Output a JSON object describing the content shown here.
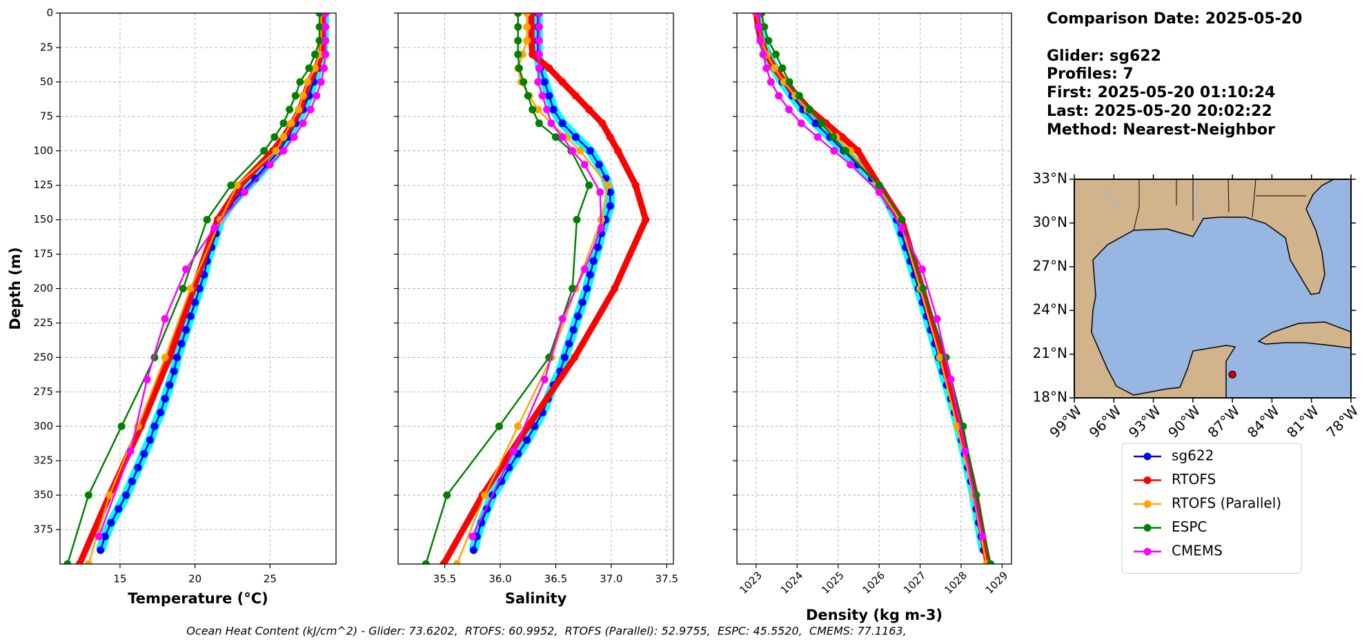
{
  "chart_data": [
    {
      "type": "profile",
      "xlabel": "Temperature (°C)",
      "ylabel": "Depth (m)",
      "xlim": [
        11.0,
        29.4
      ],
      "xticks": [
        15,
        20,
        25
      ],
      "ylim": [
        0,
        400
      ],
      "y_inverted": true,
      "yticks": [
        0,
        25,
        50,
        75,
        100,
        125,
        150,
        175,
        200,
        225,
        250,
        275,
        300,
        325,
        350,
        375
      ],
      "grid": true,
      "legend": true,
      "series": [
        {
          "name": "sg622",
          "color": "#0000ff",
          "band_color": "#00ffff",
          "line_width": 2.5,
          "marker_size": 5.5,
          "y": [
            0,
            10,
            20,
            30,
            40,
            50,
            60,
            70,
            80,
            90,
            100,
            110,
            120,
            130,
            140,
            150,
            160,
            170,
            180,
            190,
            200,
            210,
            220,
            230,
            240,
            250,
            260,
            270,
            280,
            290,
            300,
            310,
            320,
            330,
            340,
            350,
            360,
            370,
            380,
            390
          ],
          "x": [
            28.6,
            28.6,
            28.6,
            28.5,
            28.2,
            27.9,
            27.6,
            27.2,
            26.7,
            26.2,
            25.6,
            24.8,
            24.0,
            23.1,
            22.3,
            21.7,
            21.4,
            21.1,
            20.8,
            20.6,
            20.3,
            20.0,
            19.7,
            19.4,
            19.1,
            18.8,
            18.6,
            18.3,
            18.0,
            17.7,
            17.3,
            17.0,
            16.6,
            16.2,
            15.8,
            15.4,
            14.9,
            14.4,
            14.0,
            13.7
          ]
        },
        {
          "name": "RTOFS",
          "color": "#ff0000",
          "line_width": 9,
          "marker_size": 5.5,
          "y": [
            0,
            10,
            20,
            30,
            40,
            50,
            60,
            70,
            80,
            90,
            100,
            125,
            150,
            200,
            250,
            300,
            350,
            400
          ],
          "x": [
            28.5,
            28.5,
            28.5,
            28.4,
            28.1,
            27.6,
            27.3,
            27.0,
            26.5,
            25.9,
            25.2,
            23.0,
            21.5,
            19.9,
            18.3,
            16.4,
            14.3,
            12.3
          ]
        },
        {
          "name": "RTOFS (Parallel)",
          "color": "#ffa500",
          "line_width": 2.5,
          "marker_size": 5.5,
          "y": [
            0,
            10,
            20,
            30,
            40,
            50,
            60,
            70,
            80,
            90,
            100,
            125,
            150,
            200,
            250,
            300,
            350,
            400
          ],
          "x": [
            28.4,
            28.4,
            28.4,
            28.3,
            28.0,
            27.5,
            27.2,
            26.9,
            26.4,
            25.9,
            25.4,
            22.8,
            21.7,
            19.7,
            18.0,
            16.2,
            14.3,
            12.9
          ]
        },
        {
          "name": "ESPC",
          "color": "#008000",
          "line_width": 2.5,
          "marker_size": 5.5,
          "y": [
            0,
            10,
            20,
            30,
            40,
            50,
            60,
            70,
            80,
            90,
            100,
            125,
            150,
            200,
            250,
            300,
            350,
            400
          ],
          "x": [
            28.3,
            28.3,
            28.3,
            28.0,
            27.6,
            27.0,
            26.7,
            26.3,
            25.9,
            25.3,
            24.6,
            22.4,
            20.8,
            19.2,
            17.3,
            15.1,
            12.9,
            11.5
          ]
        },
        {
          "name": "CMEMS",
          "color": "#ff00ff",
          "line_width": 2.5,
          "marker_size": 5.5,
          "y": [
            0,
            10,
            20,
            30,
            40,
            50,
            60,
            70,
            80,
            90,
            100,
            110,
            130,
            156,
            186,
            222,
            266,
            318,
            380
          ],
          "x": [
            28.7,
            28.7,
            28.7,
            28.7,
            28.6,
            28.4,
            28.1,
            27.7,
            27.2,
            26.6,
            25.9,
            25.0,
            23.3,
            21.3,
            19.4,
            18.0,
            16.8,
            15.7,
            13.6
          ]
        }
      ]
    },
    {
      "type": "profile",
      "xlabel": "Salinity",
      "xlim": [
        35.08,
        37.56
      ],
      "xticks": [
        35.5,
        {
          "value": 36,
          "label": "36.0"
        },
        36.5,
        {
          "value": 37,
          "label": "37.0"
        },
        37.5
      ],
      "sharey": true,
      "grid": true,
      "series": [
        {
          "color": "#0000ff",
          "band_color": "#00ffff",
          "line_width": 2.5,
          "marker_size": 5.5,
          "y": [
            0,
            10,
            20,
            30,
            40,
            50,
            60,
            70,
            80,
            90,
            100,
            110,
            120,
            130,
            140,
            150,
            160,
            170,
            180,
            190,
            200,
            210,
            220,
            230,
            240,
            250,
            260,
            270,
            280,
            290,
            300,
            310,
            320,
            330,
            340,
            350,
            360,
            370,
            380,
            390
          ],
          "x": [
            36.34,
            36.34,
            36.34,
            36.34,
            36.36,
            36.4,
            36.44,
            36.48,
            36.56,
            36.68,
            36.81,
            36.89,
            36.95,
            36.99,
            36.99,
            36.95,
            36.91,
            36.88,
            36.84,
            36.81,
            36.78,
            36.74,
            36.7,
            36.66,
            36.62,
            36.58,
            36.54,
            36.48,
            36.43,
            36.38,
            36.31,
            36.24,
            36.16,
            36.08,
            36.01,
            35.93,
            35.88,
            35.83,
            35.79,
            35.76
          ]
        },
        {
          "color": "#ff0000",
          "line_width": 9,
          "marker_size": 5.5,
          "y": [
            0,
            10,
            20,
            30,
            40,
            50,
            60,
            70,
            80,
            90,
            100,
            125,
            150,
            200,
            250,
            300,
            350,
            400
          ],
          "x": [
            36.28,
            36.28,
            36.28,
            36.29,
            36.44,
            36.56,
            36.68,
            36.8,
            36.92,
            36.99,
            37.06,
            37.22,
            37.31,
            37.03,
            36.67,
            36.25,
            35.84,
            35.49
          ]
        },
        {
          "color": "#ffa500",
          "line_width": 2.5,
          "marker_size": 5.5,
          "y": [
            0,
            10,
            20,
            30,
            40,
            50,
            60,
            70,
            80,
            90,
            100,
            125,
            150,
            200,
            250,
            300,
            350,
            400
          ],
          "x": [
            36.24,
            36.24,
            36.24,
            36.2,
            36.16,
            36.19,
            36.26,
            36.34,
            36.46,
            36.6,
            36.72,
            36.97,
            36.91,
            36.68,
            36.46,
            36.16,
            35.86,
            35.61
          ]
        },
        {
          "color": "#008000",
          "line_width": 2.5,
          "marker_size": 5.5,
          "y": [
            0,
            10,
            20,
            30,
            40,
            50,
            60,
            70,
            80,
            90,
            100,
            125,
            150,
            200,
            250,
            300,
            350,
            400
          ],
          "x": [
            36.16,
            36.16,
            36.16,
            36.16,
            36.17,
            36.21,
            36.25,
            36.29,
            36.35,
            36.5,
            36.64,
            36.8,
            36.69,
            36.65,
            36.44,
            35.99,
            35.52,
            35.33
          ]
        },
        {
          "color": "#ff00ff",
          "line_width": 2.5,
          "marker_size": 5.5,
          "y": [
            0,
            10,
            20,
            30,
            40,
            50,
            60,
            70,
            80,
            90,
            100,
            110,
            130,
            156,
            186,
            222,
            266,
            318,
            380
          ],
          "x": [
            36.35,
            36.35,
            36.35,
            36.35,
            36.35,
            36.34,
            36.38,
            36.42,
            36.46,
            36.56,
            36.65,
            36.76,
            36.9,
            36.91,
            36.76,
            36.56,
            36.4,
            36.12,
            35.75
          ]
        }
      ]
    },
    {
      "type": "profile",
      "xlabel": "Density (kg m-3)",
      "xlim": [
        1022.53,
        1029.23
      ],
      "xticks": [
        1023,
        1024,
        1025,
        1026,
        1027,
        1028,
        1029
      ],
      "xtick_rotation": 45,
      "sharey": true,
      "grid": true,
      "series": [
        {
          "color": "#0000ff",
          "band_color": "#00ffff",
          "line_width": 2.5,
          "marker_size": 5.5,
          "y": [
            0,
            10,
            20,
            30,
            40,
            50,
            60,
            70,
            80,
            90,
            100,
            110,
            120,
            130,
            140,
            150,
            160,
            170,
            180,
            190,
            200,
            210,
            220,
            230,
            240,
            250,
            260,
            270,
            280,
            290,
            300,
            310,
            320,
            330,
            340,
            350,
            360,
            370,
            380,
            390
          ],
          "x": [
            1023.04,
            1023.08,
            1023.15,
            1023.27,
            1023.44,
            1023.64,
            1023.88,
            1024.14,
            1024.45,
            1024.8,
            1025.14,
            1025.48,
            1025.82,
            1026.08,
            1026.27,
            1026.43,
            1026.54,
            1026.65,
            1026.76,
            1026.86,
            1026.96,
            1027.06,
            1027.16,
            1027.26,
            1027.36,
            1027.45,
            1027.55,
            1027.65,
            1027.75,
            1027.84,
            1027.93,
            1028.01,
            1028.09,
            1028.16,
            1028.24,
            1028.31,
            1028.37,
            1028.43,
            1028.49,
            1028.55
          ]
        },
        {
          "color": "#ff0000",
          "line_width": 9,
          "marker_size": 5.5,
          "y": [
            0,
            10,
            20,
            30,
            40,
            50,
            60,
            70,
            80,
            90,
            100,
            125,
            150,
            200,
            250,
            300,
            350,
            400
          ],
          "x": [
            1023.0,
            1023.05,
            1023.12,
            1023.25,
            1023.45,
            1023.7,
            1024.0,
            1024.3,
            1024.7,
            1025.1,
            1025.48,
            1026.0,
            1026.55,
            1027.05,
            1027.54,
            1027.97,
            1028.35,
            1028.65
          ]
        },
        {
          "color": "#ffa500",
          "line_width": 2.5,
          "marker_size": 5.5,
          "y": [
            0,
            10,
            20,
            30,
            40,
            50,
            60,
            70,
            80,
            90,
            100,
            125,
            150,
            200,
            250,
            300,
            350,
            400
          ],
          "x": [
            1023.02,
            1023.06,
            1023.13,
            1023.26,
            1023.45,
            1023.68,
            1023.95,
            1024.25,
            1024.6,
            1024.95,
            1025.3,
            1025.95,
            1026.5,
            1027.0,
            1027.48,
            1027.9,
            1028.3,
            1028.62
          ]
        },
        {
          "color": "#008000",
          "line_width": 2.5,
          "marker_size": 5.5,
          "y": [
            0,
            10,
            20,
            30,
            40,
            50,
            60,
            70,
            80,
            90,
            100,
            125,
            150,
            200,
            250,
            300,
            350,
            400
          ],
          "x": [
            1023.13,
            1023.2,
            1023.3,
            1023.48,
            1023.64,
            1023.81,
            1024.05,
            1024.3,
            1024.6,
            1024.88,
            1025.18,
            1026.0,
            1026.55,
            1027.07,
            1027.63,
            1028.05,
            1028.37,
            1028.72
          ]
        },
        {
          "color": "#ff00ff",
          "line_width": 2.5,
          "marker_size": 5.5,
          "y": [
            0,
            10,
            20,
            30,
            40,
            50,
            60,
            70,
            80,
            90,
            100,
            110,
            130,
            156,
            186,
            222,
            266,
            318,
            380
          ],
          "x": [
            1023.04,
            1023.06,
            1023.1,
            1023.17,
            1023.25,
            1023.36,
            1023.55,
            1023.8,
            1024.1,
            1024.5,
            1024.9,
            1025.3,
            1026.0,
            1026.55,
            1027.05,
            1027.41,
            1027.75,
            1028.1,
            1028.52
          ]
        }
      ]
    }
  ],
  "info": {
    "title": "Comparison Date: 2025-05-20",
    "lines": [
      "Glider: sg622",
      "Profiles: 7",
      "First: 2025-05-20 01:10:24",
      "Last: 2025-05-20 20:02:22",
      "Method: Nearest-Neighbor"
    ]
  },
  "map": {
    "xlim": [
      -99,
      -78
    ],
    "ylim": [
      18,
      33
    ],
    "xticks": [
      {
        "value": -99,
        "label": "99°W"
      },
      {
        "value": -96,
        "label": "96°W"
      },
      {
        "value": -93,
        "label": "93°W"
      },
      {
        "value": -90,
        "label": "90°W"
      },
      {
        "value": -87,
        "label": "87°W"
      },
      {
        "value": -84,
        "label": "84°W"
      },
      {
        "value": -81,
        "label": "81°W"
      },
      {
        "value": -78,
        "label": "78°W"
      }
    ],
    "yticks": [
      {
        "value": 18,
        "label": "18°N"
      },
      {
        "value": 21,
        "label": "21°N"
      },
      {
        "value": 24,
        "label": "24°N"
      },
      {
        "value": 27,
        "label": "27°N"
      },
      {
        "value": 30,
        "label": "30°N"
      },
      {
        "value": 33,
        "label": "33°N"
      }
    ],
    "marker": {
      "lon": -87.0,
      "lat": 19.6,
      "color": "#e00000"
    }
  },
  "footer": "Ocean Heat Content (kJ/cm^2) - Glider: 73.6202,  RTOFS: 60.9952,  RTOFS (Parallel): 52.9755,  ESPC: 45.5520,  CMEMS: 77.1163,"
}
